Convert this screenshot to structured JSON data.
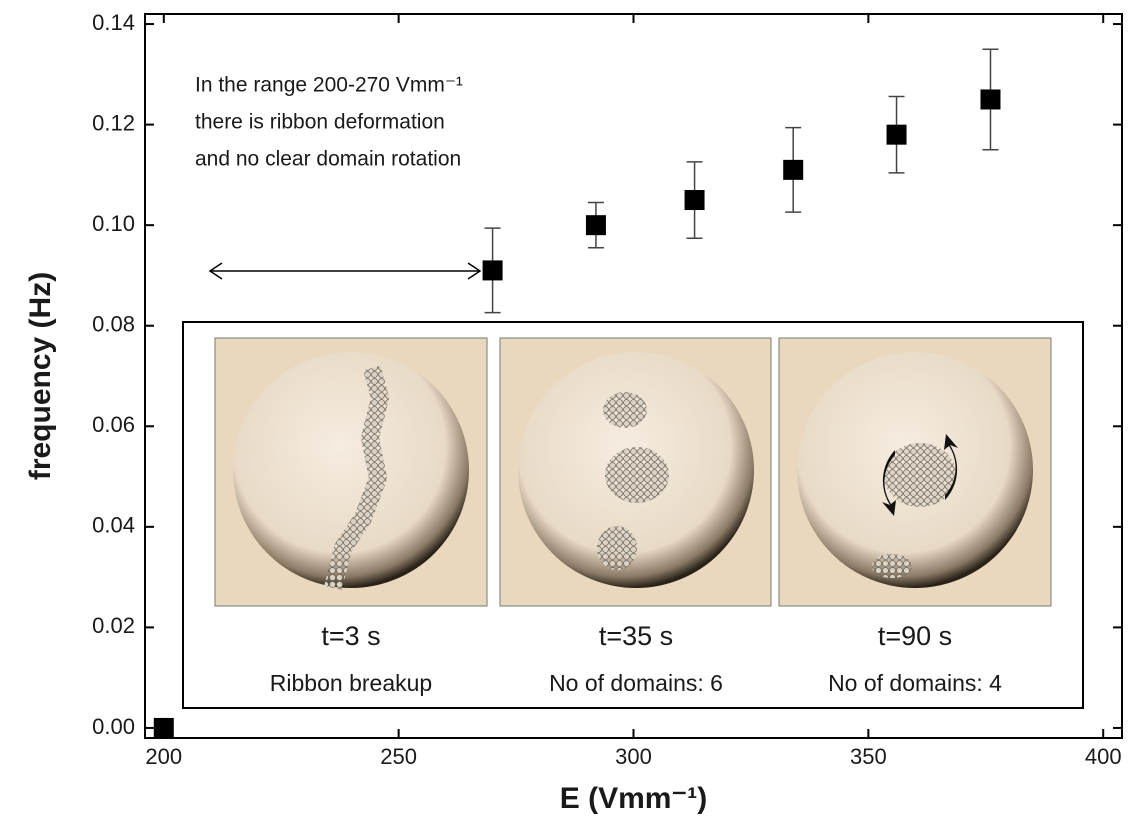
{
  "chart_data": {
    "type": "scatter",
    "xlabel": "E (Vmm⁻¹)",
    "ylabel": "frequency (Hz)",
    "annotation": [
      "In the range 200-270 Vmm⁻¹",
      "there is ribbon deformation",
      "and no clear domain rotation"
    ],
    "x": [
      200,
      270,
      292,
      313,
      334,
      356,
      376
    ],
    "values": [
      0,
      0.091,
      0.1,
      0.105,
      0.111,
      0.118,
      0.125
    ],
    "errors": [
      null,
      0.0084,
      0.0045,
      0.0076,
      0.0084,
      0.0076,
      0.01
    ],
    "color": "#000000",
    "xlim": [
      196,
      404
    ],
    "xticks": [
      200,
      250,
      300,
      350,
      400
    ],
    "ylim": [
      -0.002,
      0.142
    ],
    "yticks": [
      {
        "value": 0,
        "label": "0.00"
      },
      {
        "value": 0.02,
        "label": "0.02"
      },
      {
        "value": 0.04,
        "label": "0.04"
      },
      {
        "value": 0.06,
        "label": "0.06"
      },
      {
        "value": 0.08,
        "label": "0.08"
      },
      {
        "value": 0.1,
        "label": "0.10"
      },
      {
        "value": 0.12,
        "label": "0.12"
      },
      {
        "value": 0.14,
        "label": "0.14"
      }
    ]
  },
  "inset": {
    "panels": [
      {
        "time": "t=3 s",
        "caption": "Ribbon breakup"
      },
      {
        "time": "t=35 s",
        "caption": "No of domains: 6"
      },
      {
        "time": "t=90 s",
        "caption": "No of domains: 4"
      }
    ]
  }
}
